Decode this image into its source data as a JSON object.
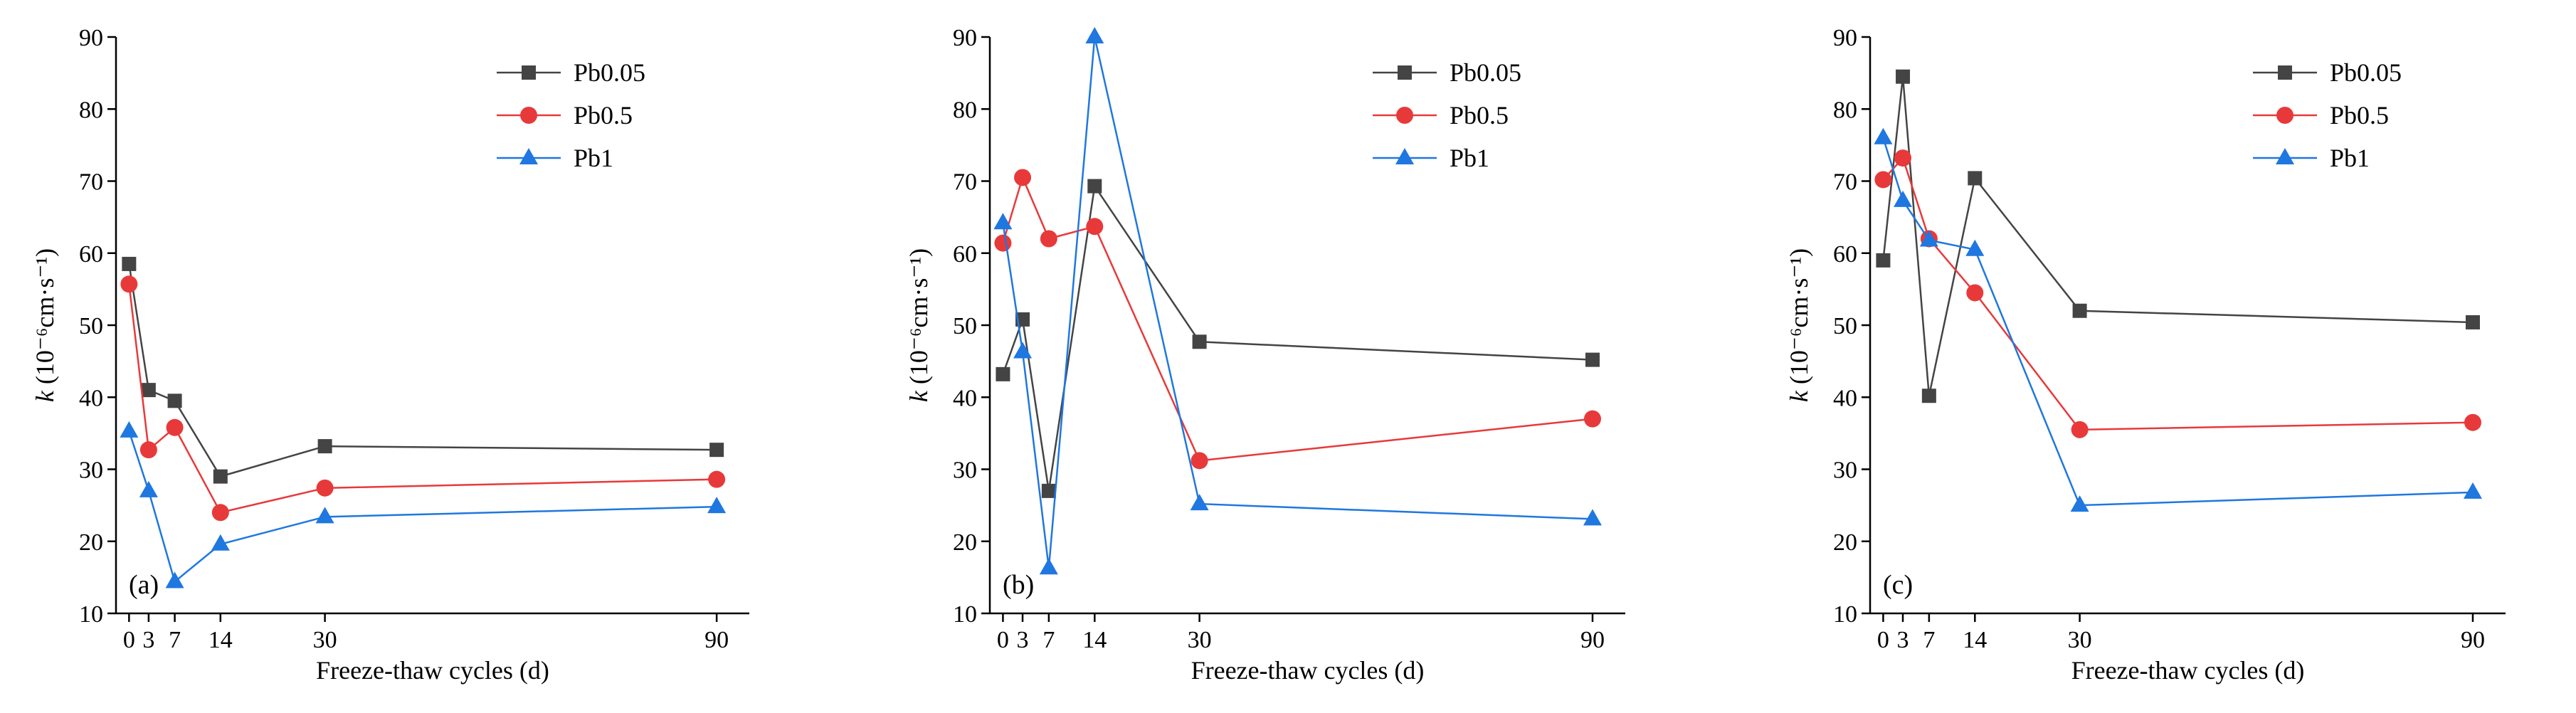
{
  "figure": {
    "background": "#ffffff"
  },
  "series_styles": [
    {
      "name": "Pb0.05",
      "color": "#444444",
      "marker": "square"
    },
    {
      "name": "Pb0.5",
      "color": "#e8393a",
      "marker": "circle"
    },
    {
      "name": "Pb1",
      "color": "#1f77e0",
      "marker": "triangle"
    }
  ],
  "chart_data": [
    {
      "type": "line",
      "panel_label": "(a)",
      "xlabel": "Freeze-thaw cycles (d)",
      "ylabel_main": "k",
      "ylabel_unit": "(10⁻⁶cm·s⁻¹)",
      "x": [
        0,
        3,
        7,
        14,
        30,
        90
      ],
      "x_ticks": [
        0,
        3,
        7,
        14,
        30,
        90
      ],
      "x_tick_labels": [
        "0",
        "3",
        "7",
        "14",
        "30",
        "90"
      ],
      "xlim": [
        -2,
        95
      ],
      "ylim": [
        10,
        90
      ],
      "y_ticks": [
        10,
        20,
        30,
        40,
        50,
        60,
        70,
        80,
        90
      ],
      "legend_position": "top-right",
      "series": [
        {
          "name": "Pb0.05",
          "values": [
            58.5,
            41.0,
            39.5,
            29.0,
            33.2,
            32.7
          ]
        },
        {
          "name": "Pb0.5",
          "values": [
            55.7,
            32.7,
            35.8,
            24.0,
            27.4,
            28.6
          ]
        },
        {
          "name": "Pb1",
          "values": [
            35.3,
            27.0,
            14.4,
            19.6,
            23.4,
            24.8
          ]
        }
      ]
    },
    {
      "type": "line",
      "panel_label": "(b)",
      "xlabel": "Freeze-thaw cycles (d)",
      "ylabel_main": "k",
      "ylabel_unit": "(10⁻⁶cm·s⁻¹)",
      "x": [
        0,
        3,
        7,
        14,
        30,
        90
      ],
      "x_ticks": [
        0,
        3,
        7,
        14,
        30,
        90
      ],
      "x_tick_labels": [
        "0",
        "3",
        "7",
        "14",
        "30",
        "90"
      ],
      "xlim": [
        -2,
        95
      ],
      "ylim": [
        10,
        90
      ],
      "y_ticks": [
        10,
        20,
        30,
        40,
        50,
        60,
        70,
        80,
        90
      ],
      "legend_position": "top-right",
      "series": [
        {
          "name": "Pb0.05",
          "values": [
            43.2,
            50.8,
            27.0,
            69.3,
            47.7,
            45.2
          ]
        },
        {
          "name": "Pb0.5",
          "values": [
            61.4,
            70.5,
            62.0,
            63.7,
            31.2,
            37.0
          ]
        },
        {
          "name": "Pb1",
          "values": [
            64.2,
            46.3,
            16.3,
            90.0,
            25.2,
            23.1
          ]
        }
      ]
    },
    {
      "type": "line",
      "panel_label": "(c)",
      "xlabel": "Freeze-thaw cycles (d)",
      "ylabel_main": "k",
      "ylabel_unit": "(10⁻⁶cm·s⁻¹)",
      "x": [
        0,
        3,
        7,
        14,
        30,
        90
      ],
      "x_ticks": [
        0,
        3,
        7,
        14,
        30,
        90
      ],
      "x_tick_labels": [
        "0",
        "3",
        "7",
        "14",
        "30",
        "90"
      ],
      "xlim": [
        -2,
        95
      ],
      "ylim": [
        10,
        90
      ],
      "y_ticks": [
        10,
        20,
        30,
        40,
        50,
        60,
        70,
        80,
        90
      ],
      "legend_position": "top-right",
      "series": [
        {
          "name": "Pb0.05",
          "values": [
            59.0,
            84.5,
            40.2,
            70.4,
            52.0,
            50.4
          ]
        },
        {
          "name": "Pb0.5",
          "values": [
            70.2,
            73.2,
            62.0,
            54.5,
            35.5,
            36.5
          ]
        },
        {
          "name": "Pb1",
          "values": [
            76.0,
            67.3,
            61.8,
            60.5,
            25.0,
            26.8
          ]
        }
      ]
    }
  ]
}
